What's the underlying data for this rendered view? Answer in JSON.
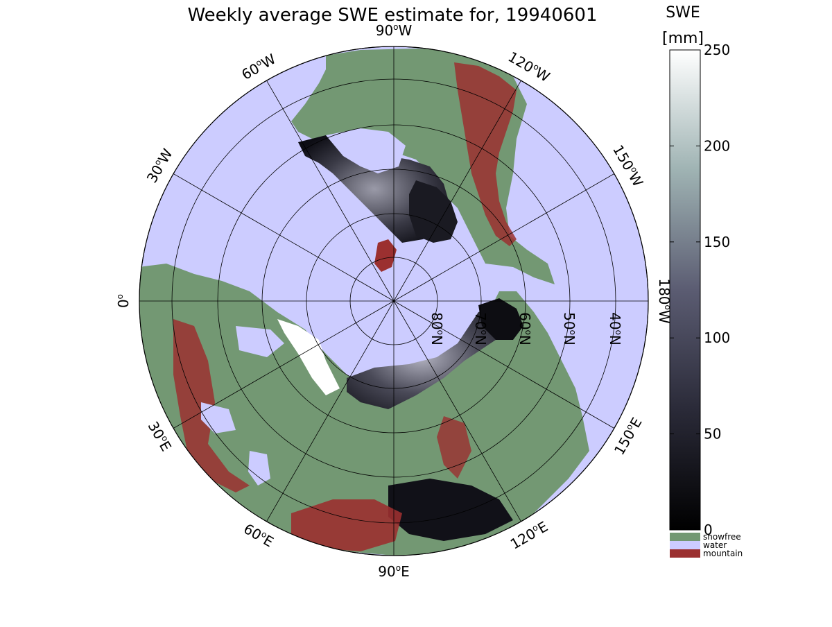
{
  "title": "Weekly average SWE estimate for, 19940601",
  "map": {
    "projection": "north-polar-stereographic",
    "longitude_labels": [
      {
        "text": "90",
        "suffix": "W"
      },
      {
        "text": "120",
        "suffix": "W"
      },
      {
        "text": "150",
        "suffix": "W"
      },
      {
        "text": "180",
        "suffix": "W"
      },
      {
        "text": "150",
        "suffix": "E"
      },
      {
        "text": "120",
        "suffix": "E"
      },
      {
        "text": "90",
        "suffix": "E"
      },
      {
        "text": "60",
        "suffix": "E"
      },
      {
        "text": "30",
        "suffix": "E"
      },
      {
        "text": "0",
        "suffix": ""
      },
      {
        "text": "30",
        "suffix": "W"
      },
      {
        "text": "60",
        "suffix": "W"
      }
    ],
    "latitude_labels": [
      {
        "text": "80",
        "suffix": "N"
      },
      {
        "text": "70",
        "suffix": "N"
      },
      {
        "text": "60",
        "suffix": "N"
      },
      {
        "text": "50",
        "suffix": "N"
      },
      {
        "text": "40",
        "suffix": "N"
      }
    ],
    "colors": {
      "water": "#ccccff",
      "snowfree": "#739873",
      "mountain": "#9b3030",
      "snow_max": "#ffffff",
      "snow_min": "#000000"
    }
  },
  "colorbar": {
    "title_line1": "SWE",
    "title_line2": "[mm]",
    "ticks": [
      "0",
      "50",
      "100",
      "150",
      "200",
      "250"
    ],
    "range": [
      0,
      250
    ]
  },
  "legend": {
    "items": [
      {
        "label": "snowfree",
        "color": "#739873"
      },
      {
        "label": "water",
        "color": "#ccccff"
      },
      {
        "label": "mountain",
        "color": "#9b3030"
      }
    ]
  }
}
